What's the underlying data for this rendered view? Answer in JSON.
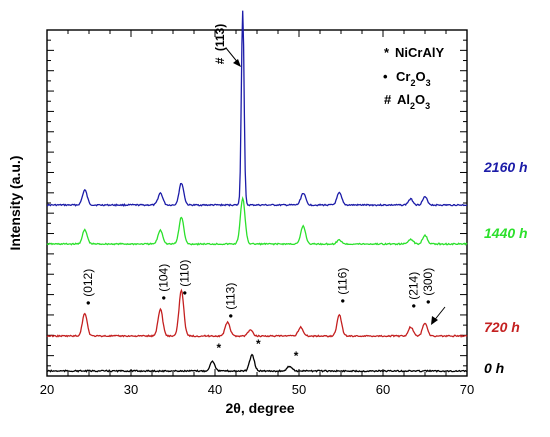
{
  "chart_data": {
    "type": "line",
    "xlabel": "2θ, degree",
    "ylabel": "Intensity (a.u.)",
    "xlim": [
      20,
      70
    ],
    "x_ticks": [
      "20",
      "30",
      "40",
      "50",
      "60",
      "70"
    ],
    "legend": {
      "placement": "top-right",
      "entries": [
        {
          "symbol": "*",
          "label": "NiCrAlY"
        },
        {
          "symbol": "•",
          "label": "Cr2O3"
        },
        {
          "symbol": "#",
          "label": "Al2O3"
        }
      ]
    },
    "series": [
      {
        "name": "2160 h",
        "color": "#1c1ca8",
        "peaks": [
          {
            "x": 24.5,
            "y": 15
          },
          {
            "x": 33.5,
            "y": 12
          },
          {
            "x": 36.0,
            "y": 22
          },
          {
            "x": 43.3,
            "y": 195
          },
          {
            "x": 50.5,
            "y": 12
          },
          {
            "x": 54.8,
            "y": 12
          },
          {
            "x": 63.3,
            "y": 6
          },
          {
            "x": 65.0,
            "y": 8
          }
        ]
      },
      {
        "name": "1440 h",
        "color": "#2ce02c",
        "peaks": [
          {
            "x": 24.5,
            "y": 14
          },
          {
            "x": 33.5,
            "y": 14
          },
          {
            "x": 36.0,
            "y": 27
          },
          {
            "x": 43.3,
            "y": 45
          },
          {
            "x": 50.5,
            "y": 18
          },
          {
            "x": 54.8,
            "y": 4
          },
          {
            "x": 63.3,
            "y": 5
          },
          {
            "x": 65.0,
            "y": 9
          }
        ]
      },
      {
        "name": "720 h",
        "color": "#c42020",
        "peaks": [
          {
            "x": 24.5,
            "y": 23
          },
          {
            "x": 33.5,
            "y": 27
          },
          {
            "x": 36.0,
            "y": 46
          },
          {
            "x": 41.5,
            "y": 14
          },
          {
            "x": 44.2,
            "y": 6
          },
          {
            "x": 50.2,
            "y": 9
          },
          {
            "x": 54.8,
            "y": 21
          },
          {
            "x": 63.3,
            "y": 9
          },
          {
            "x": 65.0,
            "y": 13
          }
        ]
      },
      {
        "name": "0 h",
        "color": "#000000",
        "peaks": [
          {
            "x": 39.7,
            "y": 10
          },
          {
            "x": 44.4,
            "y": 16
          },
          {
            "x": 48.9,
            "y": 5
          }
        ]
      }
    ],
    "annotations": {
      "al2o3_peak": {
        "x": 43.3,
        "label": "(113)"
      },
      "cr2o3_peaks": [
        {
          "x": 24.5,
          "label": "(012)"
        },
        {
          "x": 33.5,
          "label": "(104)"
        },
        {
          "x": 36.0,
          "label": "(110)"
        },
        {
          "x": 41.5,
          "label": "(113)"
        },
        {
          "x": 54.8,
          "label": "(116)"
        },
        {
          "x": 63.3,
          "label": "(214)"
        },
        {
          "x": 65.0,
          "label": "(300)"
        }
      ],
      "nicraly_peaks": [
        39.7,
        44.4,
        48.9
      ]
    }
  }
}
